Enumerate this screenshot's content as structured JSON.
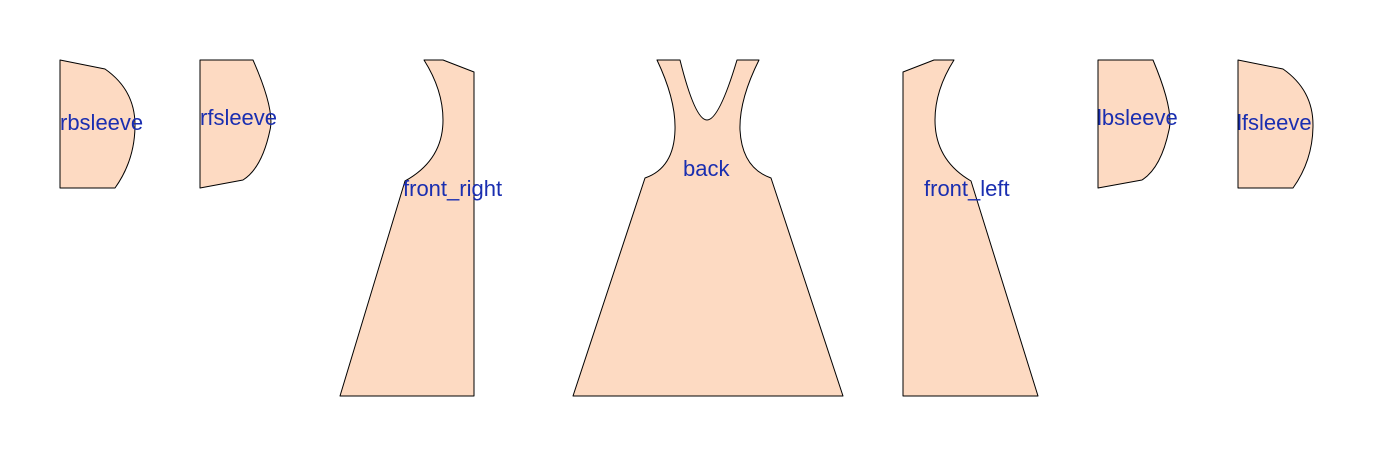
{
  "colors": {
    "background": "#ffffff",
    "piece_fill": "#fddac2",
    "piece_stroke": "#000000",
    "label": "#1a2eb0"
  },
  "pieces": {
    "rbsleeve": {
      "label": "rbsleeve"
    },
    "rfsleeve": {
      "label": "rfsleeve"
    },
    "front_right": {
      "label": "front_right"
    },
    "back": {
      "label": "back"
    },
    "front_left": {
      "label": "front_left"
    },
    "lbsleeve": {
      "label": "lbsleeve"
    },
    "lfsleeve": {
      "label": "lfsleeve"
    }
  }
}
